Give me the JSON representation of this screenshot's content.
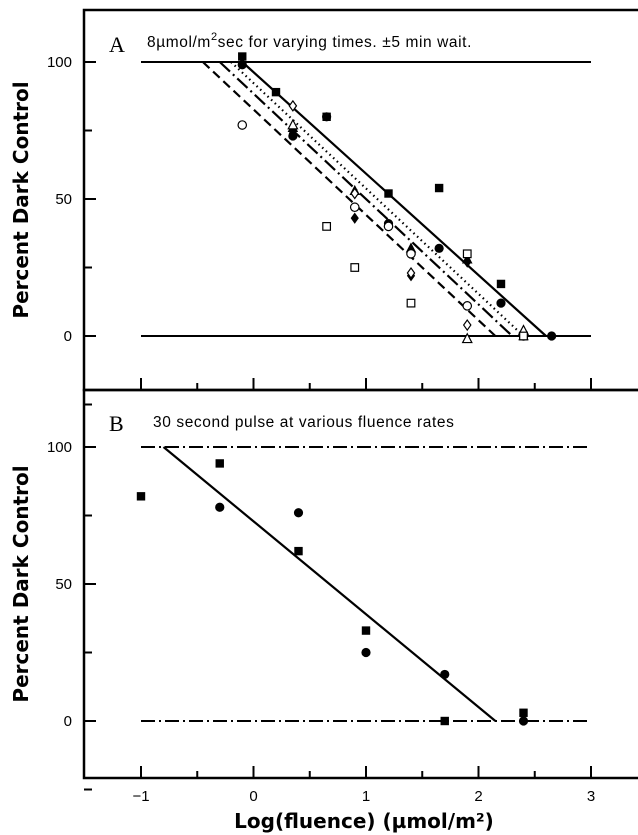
{
  "x_axis_label": "Log(fluence) (µmol/m²)",
  "chart_data": [
    {
      "type": "scatter",
      "panel": "A",
      "title": "8µmol/m²sec for varying times. ±5 min wait.",
      "title_parts": [
        "8µmol/m",
        "2",
        "sec for varying times. ±5 min wait."
      ],
      "ylabel": "Percent Dark Control",
      "xlabel": "Log(fluence) (µmol/m²)",
      "xlim": [
        -1.5,
        3.5
      ],
      "ylim": [
        -20,
        120
      ],
      "x_ticks": [
        -1,
        0,
        1,
        2,
        3
      ],
      "y_ticks": [
        0,
        50,
        100
      ],
      "x_tick_labels": [
        "−1",
        "0",
        "1",
        "2",
        "3"
      ],
      "y_tick_labels": [
        "0",
        "50",
        "100"
      ],
      "reference_lines": [
        {
          "y": 100,
          "style": "solid",
          "x_range": [
            -1,
            3
          ]
        },
        {
          "y": 0,
          "style": "solid",
          "x_range": [
            -1,
            3
          ]
        }
      ],
      "fit_lines": [
        {
          "style": "solid",
          "points": [
            [
              -0.1,
              100
            ],
            [
              2.6,
              0
            ]
          ]
        },
        {
          "style": "dotted",
          "points": [
            [
              -0.2,
              100
            ],
            [
              2.4,
              0
            ]
          ]
        },
        {
          "style": "dash-dot",
          "points": [
            [
              -0.3,
              100
            ],
            [
              2.3,
              0
            ]
          ]
        },
        {
          "style": "dashed",
          "points": [
            [
              -0.45,
              100
            ],
            [
              2.15,
              0
            ]
          ]
        }
      ],
      "series": [
        {
          "marker": "filled-square",
          "points": [
            [
              -0.1,
              102
            ],
            [
              0.2,
              89
            ],
            [
              0.65,
              80
            ],
            [
              1.2,
              52
            ],
            [
              1.65,
              54
            ],
            [
              2.2,
              19
            ],
            [
              2.4,
              0
            ]
          ]
        },
        {
          "marker": "filled-circle",
          "points": [
            [
              -0.1,
              99
            ],
            [
              0.35,
              73
            ],
            [
              0.65,
              80
            ],
            [
              1.2,
              41
            ],
            [
              1.65,
              32
            ],
            [
              2.2,
              12
            ],
            [
              2.65,
              0
            ]
          ]
        },
        {
          "marker": "filled-triangle",
          "points": [
            [
              0.35,
              76
            ],
            [
              0.9,
              53
            ],
            [
              1.4,
              32
            ],
            [
              1.9,
              28
            ],
            [
              2.4,
              0
            ]
          ]
        },
        {
          "marker": "filled-diamond",
          "points": [
            [
              0.35,
              74
            ],
            [
              0.9,
              43
            ],
            [
              1.4,
              22
            ],
            [
              1.9,
              27
            ]
          ]
        },
        {
          "marker": "open-circle",
          "points": [
            [
              -0.1,
              77
            ],
            [
              0.9,
              47
            ],
            [
              1.2,
              40
            ],
            [
              1.4,
              30
            ],
            [
              1.9,
              11
            ],
            [
              2.4,
              0
            ]
          ]
        },
        {
          "marker": "open-diamond",
          "points": [
            [
              0.35,
              84
            ],
            [
              0.9,
              52
            ],
            [
              1.4,
              23
            ],
            [
              1.9,
              4
            ],
            [
              2.4,
              1
            ]
          ]
        },
        {
          "marker": "open-triangle",
          "points": [
            [
              0.35,
              77
            ],
            [
              1.9,
              -1
            ],
            [
              2.4,
              2
            ]
          ]
        },
        {
          "marker": "open-square",
          "points": [
            [
              0.65,
              40
            ],
            [
              0.9,
              25
            ],
            [
              1.4,
              12
            ],
            [
              1.9,
              30
            ],
            [
              2.4,
              0
            ]
          ]
        }
      ]
    },
    {
      "type": "scatter",
      "panel": "B",
      "title": "30 second pulse at various fluence rates",
      "ylabel": "Percent Dark Control",
      "xlabel": "Log(fluence) (µmol/m²)",
      "xlim": [
        -1.5,
        3.5
      ],
      "ylim": [
        -20,
        120
      ],
      "x_ticks": [
        -1,
        0,
        1,
        2,
        3
      ],
      "y_ticks": [
        0,
        50,
        100
      ],
      "x_tick_labels": [
        "−1",
        "0",
        "1",
        "2",
        "3"
      ],
      "y_tick_labels": [
        "0",
        "50",
        "100"
      ],
      "reference_lines": [
        {
          "y": 100,
          "style": "dash-dot",
          "x_range": [
            -1,
            3
          ]
        },
        {
          "y": 0,
          "style": "dash-dot",
          "x_range": [
            -1,
            3
          ]
        }
      ],
      "fit_lines": [
        {
          "style": "solid",
          "points": [
            [
              -0.8,
              100
            ],
            [
              2.15,
              0
            ]
          ]
        }
      ],
      "series": [
        {
          "marker": "filled-square",
          "points": [
            [
              -1.0,
              82
            ],
            [
              -0.3,
              94
            ],
            [
              0.4,
              62
            ],
            [
              1.0,
              33
            ],
            [
              1.7,
              0
            ],
            [
              2.4,
              3
            ]
          ]
        },
        {
          "marker": "filled-circle",
          "points": [
            [
              -0.3,
              78
            ],
            [
              0.4,
              76
            ],
            [
              1.0,
              25
            ],
            [
              1.7,
              17
            ],
            [
              2.4,
              0
            ]
          ]
        }
      ]
    }
  ]
}
